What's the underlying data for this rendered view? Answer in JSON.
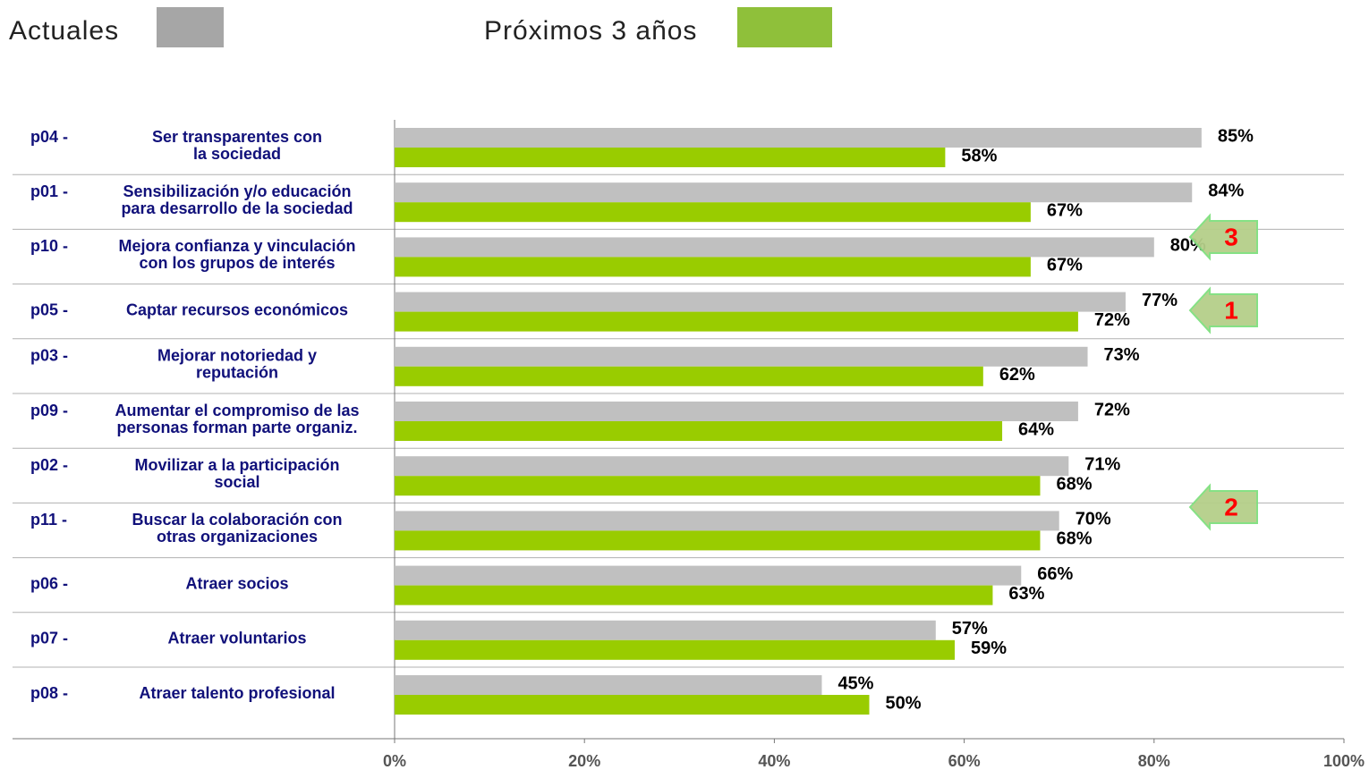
{
  "chart_data": {
    "type": "bar",
    "orientation": "horizontal",
    "categories": [
      {
        "code": "p04 -",
        "label": [
          "Ser transparentes con",
          "la sociedad"
        ]
      },
      {
        "code": "p01 -",
        "label": [
          "Sensibilización y/o educación",
          "para desarrollo de la sociedad"
        ]
      },
      {
        "code": "p10 -",
        "label": [
          "Mejora confianza y vinculación",
          "con los grupos de interés"
        ]
      },
      {
        "code": "p05 -",
        "label": [
          "Captar recursos económicos"
        ]
      },
      {
        "code": "p03 -",
        "label": [
          "Mejorar notoriedad y",
          "reputación"
        ]
      },
      {
        "code": "p09 -",
        "label": [
          "Aumentar el compromiso de las",
          "personas forman parte organiz."
        ]
      },
      {
        "code": "p02 -",
        "label": [
          "Movilizar a la participación",
          "social"
        ]
      },
      {
        "code": "p11 -",
        "label": [
          "Buscar la colaboración con",
          "otras organizaciones"
        ]
      },
      {
        "code": "p06 -",
        "label": [
          "Atraer socios"
        ]
      },
      {
        "code": "p07 -",
        "label": [
          "Atraer voluntarios"
        ]
      },
      {
        "code": "p08 -",
        "label": [
          "Atraer talento profesional"
        ]
      }
    ],
    "series": [
      {
        "name": "Actuales",
        "color": "#c0c0c0",
        "legend_color": "#a6a6a6",
        "values": [
          85,
          84,
          80,
          77,
          73,
          72,
          71,
          70,
          66,
          57,
          45
        ],
        "value_labels": [
          "85%",
          "84%",
          "80%",
          "77%",
          "73%",
          "72%",
          "71%",
          "70%",
          "66%",
          "57%",
          "45%"
        ]
      },
      {
        "name": "Próximos 3 años",
        "color": "#99cc00",
        "legend_color": "#8fc03a",
        "values": [
          58,
          67,
          67,
          72,
          62,
          64,
          68,
          68,
          63,
          59,
          50
        ],
        "value_labels": [
          "58%",
          "67%",
          "67%",
          "72%",
          "62%",
          "64%",
          "68%",
          "68%",
          "63%",
          "59%",
          "50%"
        ]
      }
    ],
    "xlim": [
      0,
      100
    ],
    "xticks": [
      {
        "value": 0,
        "label": "0%"
      },
      {
        "value": 20,
        "label": "20%"
      },
      {
        "value": 40,
        "label": "40%"
      },
      {
        "value": 60,
        "label": "60%"
      },
      {
        "value": 80,
        "label": "80%"
      },
      {
        "value": 100,
        "label": "100%"
      }
    ],
    "grid": false,
    "annotations": [
      "3",
      "1",
      "2"
    ]
  }
}
